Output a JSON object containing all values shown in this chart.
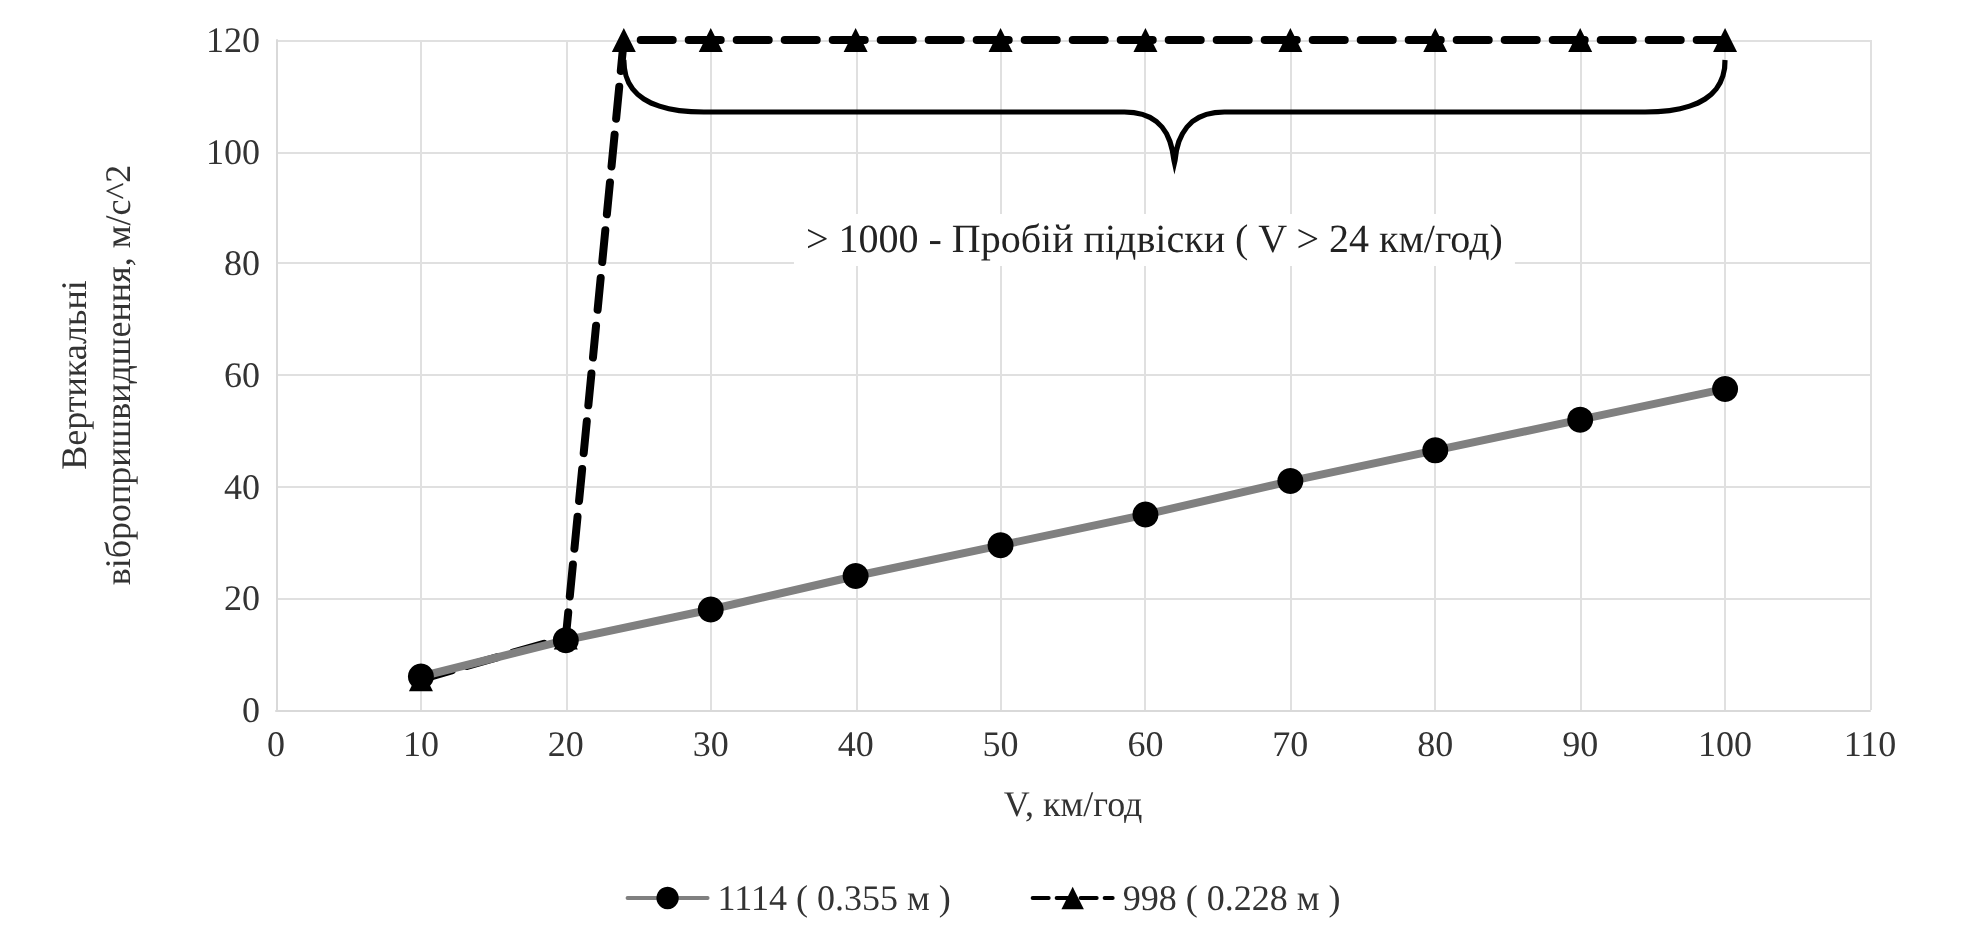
{
  "chart_data": {
    "type": "line",
    "xlabel": "V, км/год",
    "ylabel": "Вертикальні\nвібропришвидшення, м/с^2",
    "xlim": [
      0,
      110
    ],
    "xticks": [
      0,
      10,
      20,
      30,
      40,
      50,
      60,
      70,
      80,
      90,
      100,
      110
    ],
    "ylim": [
      0,
      120
    ],
    "yticks": [
      0,
      20,
      40,
      60,
      80,
      100,
      120
    ],
    "grid": true,
    "legend": "bottom",
    "annotations": [
      "> 1000 - Пробій підвіски ( V > 24 км/год)"
    ],
    "series": [
      {
        "name": "1114 ( 0.355 м )",
        "color": "#808080",
        "marker": "circle",
        "line_style": "solid",
        "x": [
          10,
          20,
          30,
          40,
          50,
          60,
          70,
          80,
          90,
          100
        ],
        "values": [
          6,
          12.5,
          18,
          24,
          29.5,
          35,
          41,
          46.5,
          52,
          57.5
        ]
      },
      {
        "name": "998 ( 0.228 м )",
        "color": "#000000",
        "marker": "triangle",
        "line_style": "dashed",
        "x": [
          10,
          20,
          24,
          30,
          40,
          50,
          60,
          70,
          80,
          90,
          100
        ],
        "values": [
          5.5,
          13,
          120,
          120,
          120,
          120,
          120,
          120,
          120,
          120,
          120
        ]
      }
    ]
  }
}
